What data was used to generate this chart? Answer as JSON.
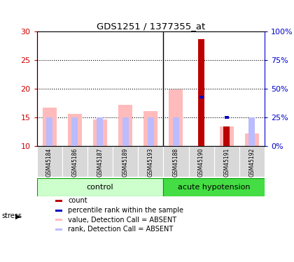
{
  "title": "GDS1251 / 1377355_at",
  "samples": [
    "GSM45184",
    "GSM45186",
    "GSM45187",
    "GSM45189",
    "GSM45193",
    "GSM45188",
    "GSM45190",
    "GSM45191",
    "GSM45192"
  ],
  "n_control": 5,
  "n_hypotension": 4,
  "value_absent": [
    16.7,
    15.6,
    14.6,
    17.2,
    16.1,
    19.9,
    null,
    13.4,
    12.2
  ],
  "rank_absent_pct": [
    25.0,
    25.0,
    25.0,
    25.0,
    25.0,
    25.0,
    null,
    null,
    25.0
  ],
  "count_value": [
    null,
    null,
    null,
    null,
    null,
    null,
    28.7,
    13.4,
    null
  ],
  "percentile_rank_pct": [
    null,
    null,
    null,
    null,
    null,
    null,
    42.5,
    25.0,
    null
  ],
  "ylim_left": [
    10,
    30
  ],
  "ylim_right": [
    0,
    100
  ],
  "yticks_left": [
    10,
    15,
    20,
    25,
    30
  ],
  "yticks_right": [
    0,
    25,
    50,
    75,
    100
  ],
  "ytick_labels_right": [
    "0%",
    "25%",
    "50%",
    "75%",
    "100%"
  ],
  "left_color": "#cc0000",
  "right_color": "#0000cc",
  "bar_bottom": 10,
  "pink_color": "#ffbbbb",
  "lightblue_color": "#bbbbff",
  "red_color": "#bb0000",
  "blue_color": "#0000bb",
  "control_color": "#ccffcc",
  "hypotension_color": "#44dd44",
  "group_border_color": "#009900",
  "stress_label": "stress",
  "legend_items": [
    {
      "color": "#bb0000",
      "label": "count"
    },
    {
      "color": "#0000bb",
      "label": "percentile rank within the sample"
    },
    {
      "color": "#ffbbbb",
      "label": "value, Detection Call = ABSENT"
    },
    {
      "color": "#bbbbff",
      "label": "rank, Detection Call = ABSENT"
    }
  ]
}
